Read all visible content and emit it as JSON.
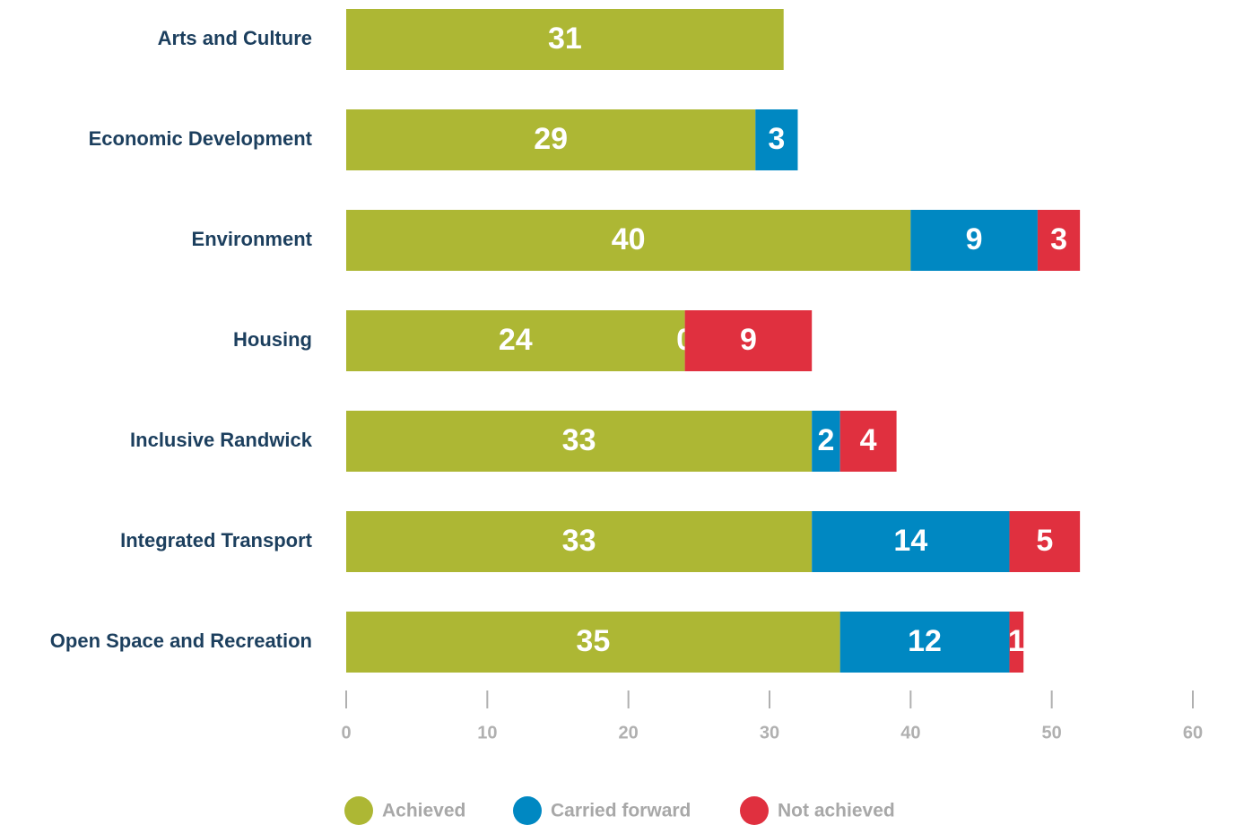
{
  "chart_data": {
    "type": "stacked_bar_horizontal",
    "categories": [
      "Arts and Culture",
      "Economic Development",
      "Environment",
      "Housing",
      "Inclusive Randwick",
      "Integrated Transport",
      "Open Space and Recreation"
    ],
    "series": [
      {
        "name": "Achieved",
        "color": "#adb734",
        "values": [
          31,
          29,
          40,
          24,
          33,
          33,
          35
        ]
      },
      {
        "name": "Carried forward",
        "color": "#0088c2",
        "values": [
          null,
          3,
          9,
          0,
          2,
          14,
          12
        ]
      },
      {
        "name": "Not achieved",
        "color": "#e0303f",
        "values": [
          null,
          null,
          3,
          9,
          4,
          5,
          1
        ]
      }
    ],
    "xlim": [
      0,
      60
    ],
    "xticks": [
      0,
      10,
      20,
      30,
      40,
      50,
      60
    ]
  }
}
